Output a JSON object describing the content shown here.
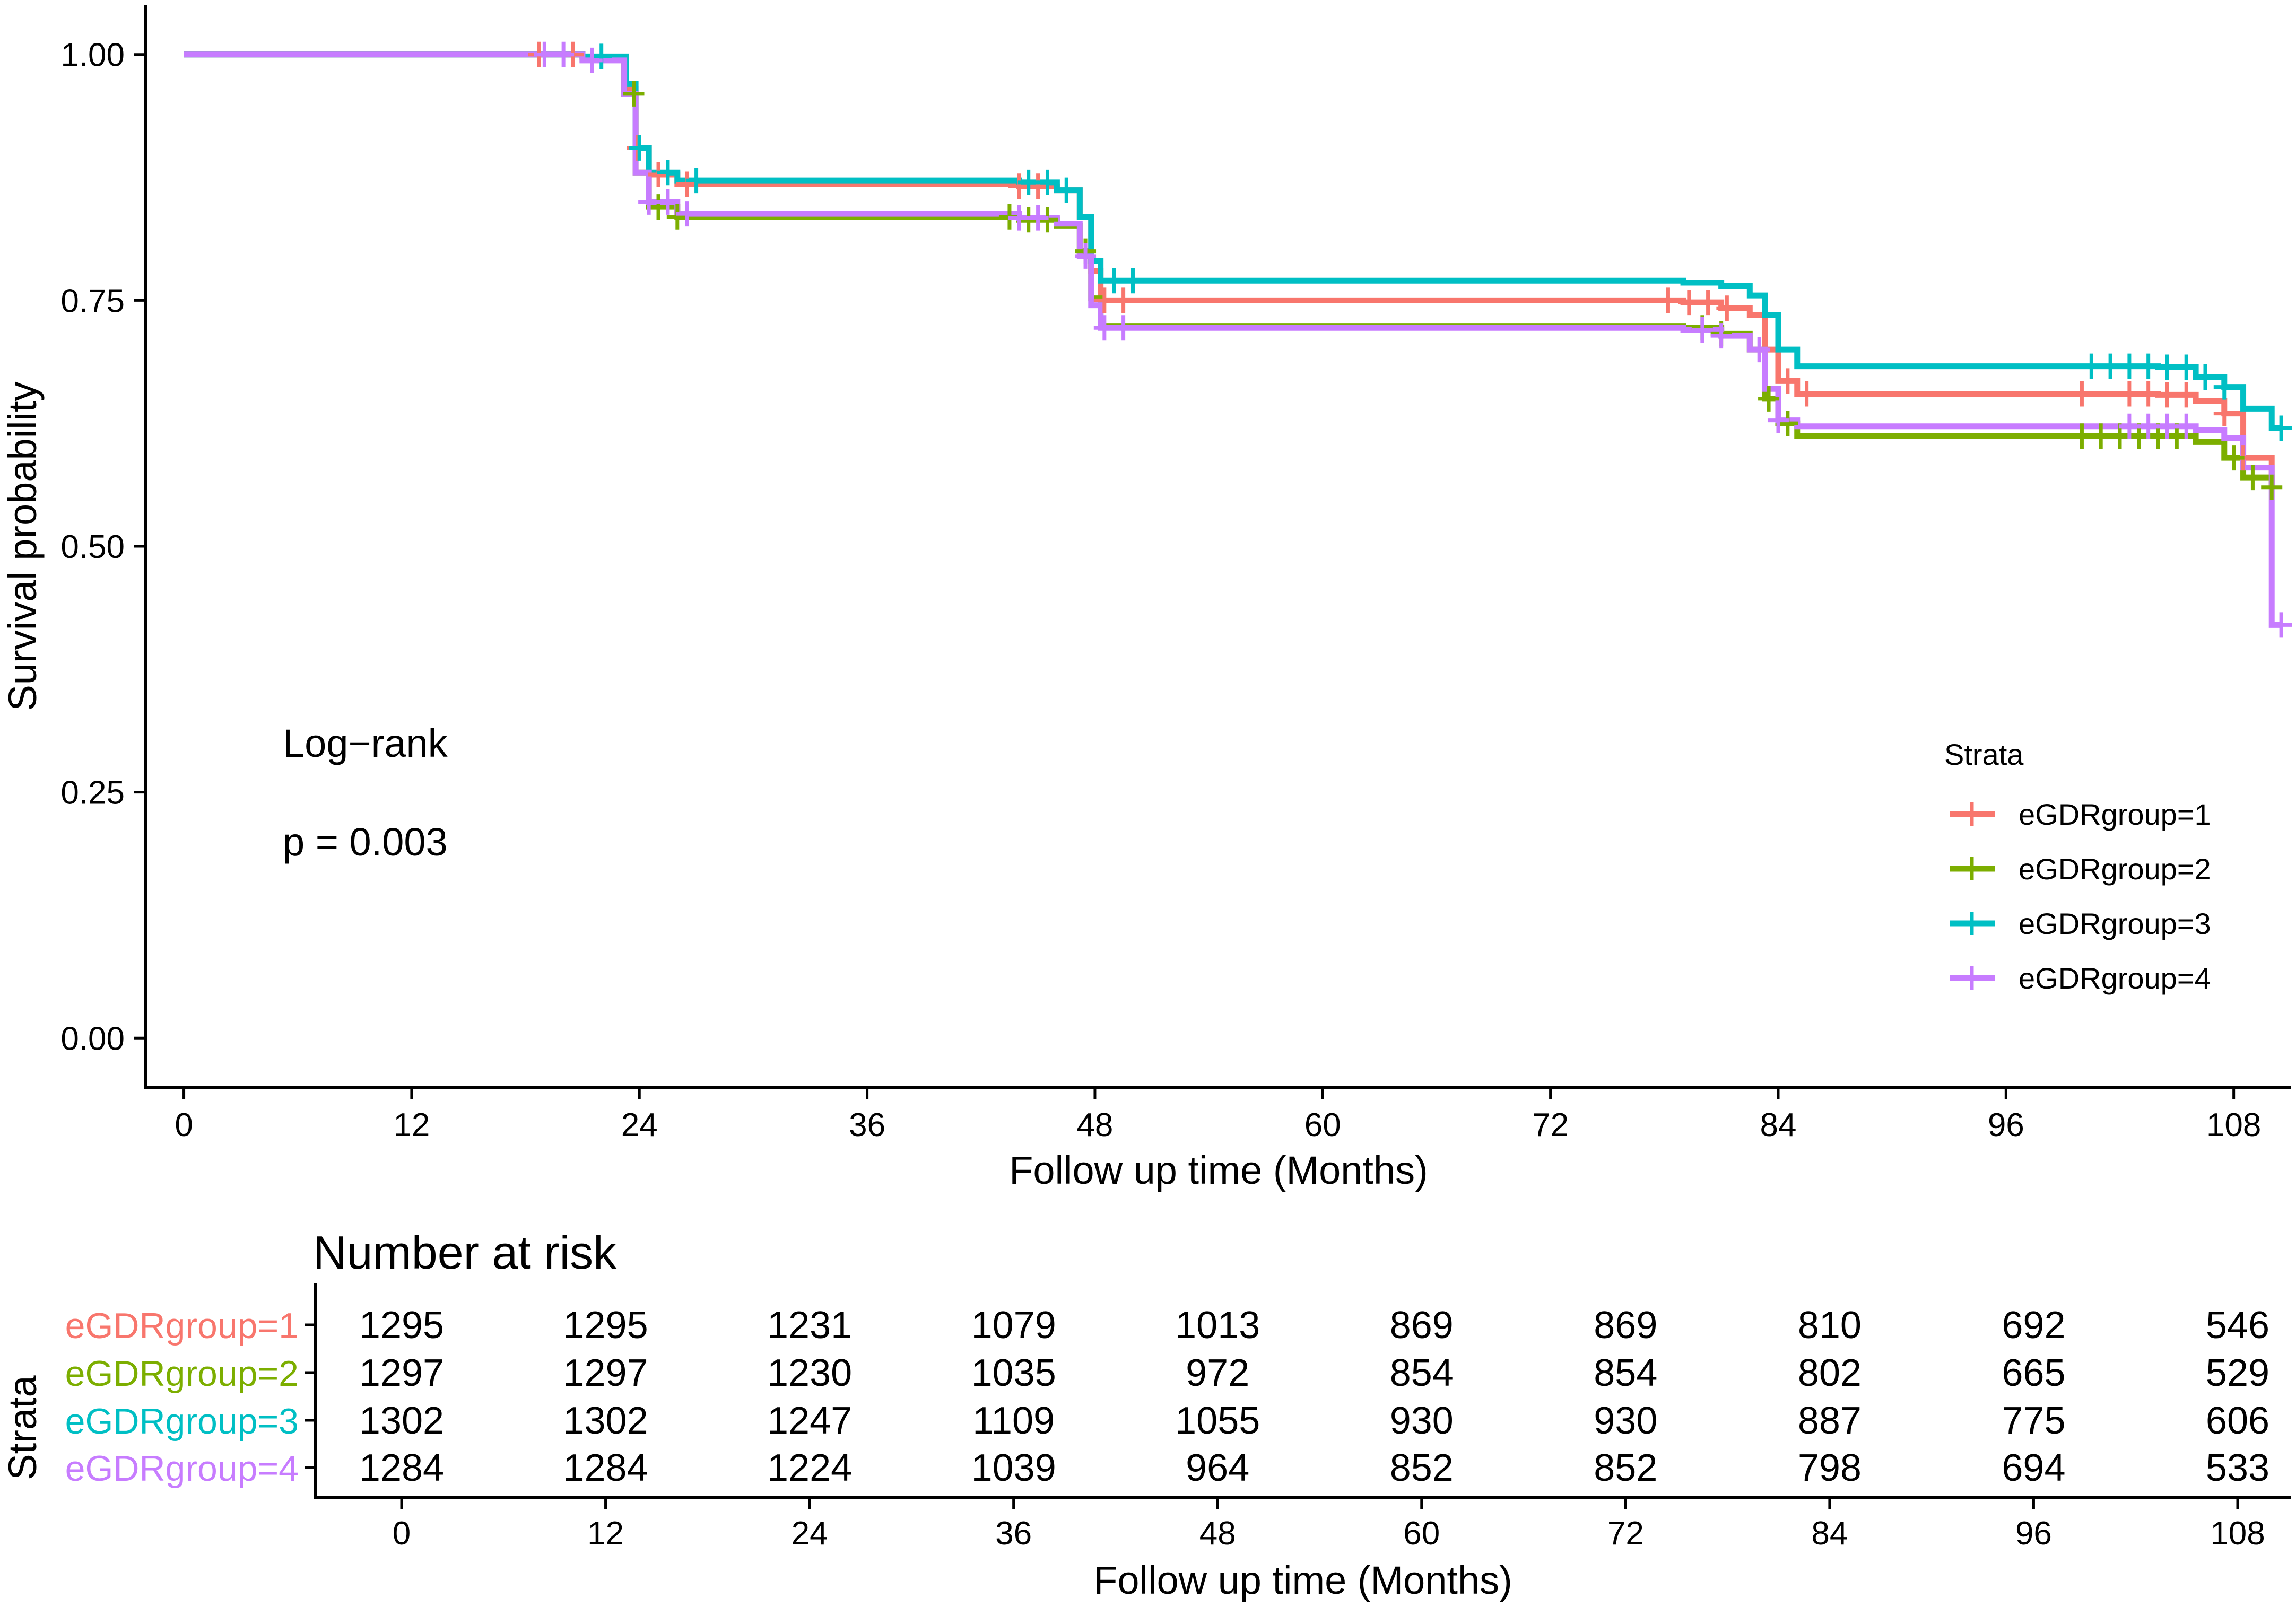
{
  "chart_data": [
    {
      "type": "line",
      "subtype": "kaplan-meier",
      "title": "",
      "xlabel": "Follow up time (Months)",
      "ylabel": "Survival probability",
      "xlim": [
        -2,
        111
      ],
      "ylim": [
        -0.05,
        1.05
      ],
      "x_ticks": [
        0,
        12,
        24,
        36,
        48,
        60,
        72,
        84,
        96,
        108
      ],
      "y_ticks": [
        0.0,
        0.25,
        0.5,
        0.75,
        1.0
      ],
      "y_tick_labels": [
        "0.00",
        "0.25",
        "0.50",
        "0.75",
        "1.00"
      ],
      "grid": false,
      "annotations": {
        "test_name": "Log−rank",
        "p_value": "p = 0.003"
      },
      "legend": {
        "title": "Strata",
        "placement": "right"
      },
      "series": [
        {
          "name": "eGDRgroup=1",
          "color": "#F8766D",
          "steps": [
            [
              0,
              1.0
            ],
            [
              21,
              0.997
            ],
            [
              23.3,
              0.965
            ],
            [
              23.8,
              0.905
            ],
            [
              24.5,
              0.878
            ],
            [
              26,
              0.868
            ],
            [
              44,
              0.866
            ],
            [
              46,
              0.862
            ],
            [
              47.2,
              0.835
            ],
            [
              47.8,
              0.78
            ],
            [
              48.3,
              0.75
            ],
            [
              79,
              0.748
            ],
            [
              81,
              0.742
            ],
            [
              82.5,
              0.735
            ],
            [
              83.3,
              0.7
            ],
            [
              84,
              0.668
            ],
            [
              85,
              0.655
            ],
            [
              104,
              0.654
            ],
            [
              106,
              0.648
            ],
            [
              107.5,
              0.635
            ],
            [
              108.5,
              0.59
            ],
            [
              110,
              0.56
            ]
          ],
          "censor_x": [
            18.7,
            20.5,
            23.9,
            25,
            26.5,
            44,
            45,
            48.5,
            49.5,
            78.2,
            79.3,
            80.3,
            81.3,
            84.5,
            85.5,
            100,
            102.5,
            103.5,
            104.5,
            105.5,
            107.5,
            108.5
          ]
        },
        {
          "name": "eGDRgroup=2",
          "color": "#7CAE00",
          "steps": [
            [
              0,
              1.0
            ],
            [
              21,
              0.995
            ],
            [
              23.2,
              0.96
            ],
            [
              23.8,
              0.88
            ],
            [
              24.5,
              0.845
            ],
            [
              26,
              0.835
            ],
            [
              44,
              0.832
            ],
            [
              46,
              0.826
            ],
            [
              47.2,
              0.8
            ],
            [
              47.8,
              0.752
            ],
            [
              48.3,
              0.724
            ],
            [
              79,
              0.722
            ],
            [
              81,
              0.716
            ],
            [
              82.5,
              0.7
            ],
            [
              83.3,
              0.65
            ],
            [
              84,
              0.625
            ],
            [
              85,
              0.612
            ],
            [
              104,
              0.612
            ],
            [
              106,
              0.606
            ],
            [
              107.5,
              0.59
            ],
            [
              108.5,
              0.57
            ],
            [
              110,
              0.56
            ]
          ],
          "censor_x": [
            23.7,
            25,
            26,
            43.5,
            44.5,
            45.5,
            47.5,
            80,
            81,
            83.5,
            84.5,
            100,
            101,
            102,
            103,
            104,
            105,
            108,
            109,
            110
          ]
        },
        {
          "name": "eGDRgroup=3",
          "color": "#00BFC4",
          "steps": [
            [
              0,
              1.0
            ],
            [
              21,
              0.998
            ],
            [
              23.3,
              0.97
            ],
            [
              23.8,
              0.905
            ],
            [
              24.5,
              0.88
            ],
            [
              26,
              0.872
            ],
            [
              44,
              0.87
            ],
            [
              46,
              0.862
            ],
            [
              47.2,
              0.835
            ],
            [
              47.8,
              0.79
            ],
            [
              48.3,
              0.77
            ],
            [
              79,
              0.768
            ],
            [
              81,
              0.765
            ],
            [
              82.5,
              0.755
            ],
            [
              83.3,
              0.735
            ],
            [
              84,
              0.7
            ],
            [
              85,
              0.683
            ],
            [
              104,
              0.682
            ],
            [
              106,
              0.672
            ],
            [
              107.5,
              0.662
            ],
            [
              108.5,
              0.64
            ],
            [
              110,
              0.62
            ]
          ],
          "censor_x": [
            22,
            24,
            25.5,
            27,
            44.5,
            45.5,
            46.5,
            49,
            50,
            100.5,
            101.5,
            102.5,
            103.5,
            104.5,
            105.5,
            106.5,
            107.5,
            110.5
          ]
        },
        {
          "name": "eGDRgroup=4",
          "color": "#C77CFF",
          "steps": [
            [
              0,
              1.0
            ],
            [
              21,
              0.994
            ],
            [
              23.2,
              0.96
            ],
            [
              23.8,
              0.88
            ],
            [
              24.5,
              0.85
            ],
            [
              26,
              0.838
            ],
            [
              44,
              0.834
            ],
            [
              46,
              0.828
            ],
            [
              47.2,
              0.795
            ],
            [
              47.8,
              0.745
            ],
            [
              48.3,
              0.722
            ],
            [
              79,
              0.72
            ],
            [
              81,
              0.714
            ],
            [
              82.5,
              0.7
            ],
            [
              83.3,
              0.66
            ],
            [
              84,
              0.628
            ],
            [
              85,
              0.622
            ],
            [
              104,
              0.622
            ],
            [
              106,
              0.618
            ],
            [
              107.5,
              0.61
            ],
            [
              108.5,
              0.58
            ],
            [
              110,
              0.42
            ]
          ],
          "censor_x": [
            19,
            20,
            21.5,
            24.5,
            25.5,
            26.5,
            44,
            45,
            47.5,
            48.5,
            49.5,
            80,
            81,
            83,
            84,
            102.5,
            103.5,
            104.5,
            105.5,
            110.5
          ]
        }
      ]
    },
    {
      "type": "table",
      "title": "Number at risk",
      "xlabel": "Follow up time (Months)",
      "ylabel": "Strata",
      "columns": [
        0,
        12,
        24,
        36,
        48,
        60,
        72,
        84,
        96,
        108
      ],
      "rows": [
        {
          "label": "eGDRgroup=1",
          "color": "#F8766D",
          "values": [
            1295,
            1295,
            1231,
            1079,
            1013,
            869,
            869,
            810,
            692,
            546
          ]
        },
        {
          "label": "eGDRgroup=2",
          "color": "#7CAE00",
          "values": [
            1297,
            1297,
            1230,
            1035,
            972,
            854,
            854,
            802,
            665,
            529
          ]
        },
        {
          "label": "eGDRgroup=3",
          "color": "#00BFC4",
          "values": [
            1302,
            1302,
            1247,
            1109,
            1055,
            930,
            930,
            887,
            775,
            606
          ]
        },
        {
          "label": "eGDRgroup=4",
          "color": "#C77CFF",
          "values": [
            1284,
            1284,
            1224,
            1039,
            964,
            852,
            852,
            798,
            694,
            533
          ]
        }
      ]
    }
  ]
}
